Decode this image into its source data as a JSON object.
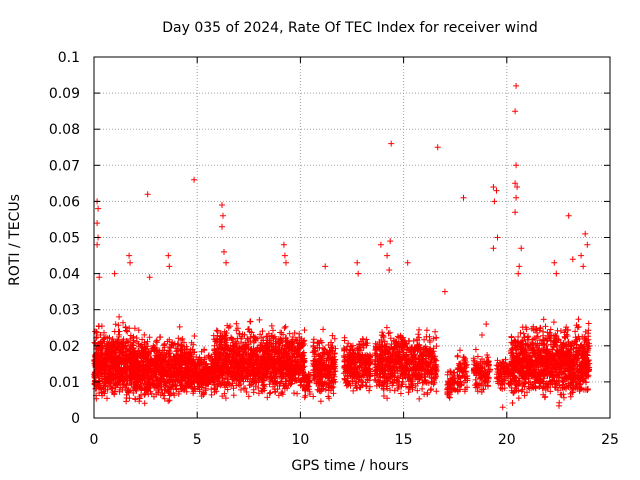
{
  "chart_data": {
    "type": "scatter",
    "title": "Day 035 of 2024, Rate Of TEC Index for receiver wind",
    "xlabel": "GPS time / hours",
    "ylabel": "ROTI / TECUs",
    "xlim": [
      0,
      25
    ],
    "ylim": [
      0,
      0.1
    ],
    "xticks": [
      "0",
      "5",
      "10",
      "15",
      "20",
      "25"
    ],
    "yticks": [
      "0",
      "0.01",
      "0.02",
      "0.03",
      "0.04",
      "0.05",
      "0.06",
      "0.07",
      "0.08",
      "0.09",
      "0.1"
    ],
    "grid": true,
    "marker": "+",
    "series_color": "#ff0000",
    "outliers": [
      {
        "x": 0.15,
        "y": 0.06
      },
      {
        "x": 0.2,
        "y": 0.058
      },
      {
        "x": 0.15,
        "y": 0.054
      },
      {
        "x": 0.2,
        "y": 0.05
      },
      {
        "x": 0.15,
        "y": 0.048
      },
      {
        "x": 0.25,
        "y": 0.039
      },
      {
        "x": 1.0,
        "y": 0.04
      },
      {
        "x": 1.7,
        "y": 0.045
      },
      {
        "x": 1.75,
        "y": 0.043
      },
      {
        "x": 2.6,
        "y": 0.062
      },
      {
        "x": 2.7,
        "y": 0.039
      },
      {
        "x": 3.6,
        "y": 0.045
      },
      {
        "x": 3.65,
        "y": 0.042
      },
      {
        "x": 4.85,
        "y": 0.066
      },
      {
        "x": 6.2,
        "y": 0.059
      },
      {
        "x": 6.25,
        "y": 0.056
      },
      {
        "x": 6.2,
        "y": 0.053
      },
      {
        "x": 6.3,
        "y": 0.046
      },
      {
        "x": 6.4,
        "y": 0.043
      },
      {
        "x": 9.2,
        "y": 0.048
      },
      {
        "x": 9.25,
        "y": 0.045
      },
      {
        "x": 9.3,
        "y": 0.043
      },
      {
        "x": 11.2,
        "y": 0.042
      },
      {
        "x": 12.75,
        "y": 0.043
      },
      {
        "x": 12.8,
        "y": 0.04
      },
      {
        "x": 13.9,
        "y": 0.048
      },
      {
        "x": 14.4,
        "y": 0.076
      },
      {
        "x": 14.35,
        "y": 0.049
      },
      {
        "x": 14.2,
        "y": 0.045
      },
      {
        "x": 14.3,
        "y": 0.041
      },
      {
        "x": 15.2,
        "y": 0.043
      },
      {
        "x": 16.65,
        "y": 0.075
      },
      {
        "x": 17.9,
        "y": 0.061
      },
      {
        "x": 19.35,
        "y": 0.064
      },
      {
        "x": 19.5,
        "y": 0.063
      },
      {
        "x": 19.4,
        "y": 0.06
      },
      {
        "x": 19.55,
        "y": 0.05
      },
      {
        "x": 19.35,
        "y": 0.047
      },
      {
        "x": 20.45,
        "y": 0.092
      },
      {
        "x": 20.4,
        "y": 0.085
      },
      {
        "x": 20.45,
        "y": 0.07
      },
      {
        "x": 20.4,
        "y": 0.065
      },
      {
        "x": 20.5,
        "y": 0.064
      },
      {
        "x": 20.45,
        "y": 0.061
      },
      {
        "x": 20.4,
        "y": 0.057
      },
      {
        "x": 20.7,
        "y": 0.047
      },
      {
        "x": 20.6,
        "y": 0.042
      },
      {
        "x": 20.55,
        "y": 0.04
      },
      {
        "x": 23.0,
        "y": 0.056
      },
      {
        "x": 23.8,
        "y": 0.051
      },
      {
        "x": 23.9,
        "y": 0.048
      },
      {
        "x": 23.6,
        "y": 0.045
      },
      {
        "x": 23.2,
        "y": 0.044
      },
      {
        "x": 23.7,
        "y": 0.042
      },
      {
        "x": 22.3,
        "y": 0.043
      },
      {
        "x": 22.4,
        "y": 0.04
      },
      {
        "x": 19.8,
        "y": 0.003
      },
      {
        "x": 17.0,
        "y": 0.035
      },
      {
        "x": 18.8,
        "y": 0.023
      },
      {
        "x": 19.0,
        "y": 0.026
      }
    ],
    "density_segments": [
      {
        "x0": 0.0,
        "x1": 2.0,
        "yl": 0.002,
        "yh": 0.03,
        "n": 700
      },
      {
        "x0": 2.0,
        "x1": 4.9,
        "yl": 0.002,
        "yh": 0.027,
        "n": 850
      },
      {
        "x0": 4.9,
        "x1": 5.8,
        "yl": 0.004,
        "yh": 0.022,
        "n": 200
      },
      {
        "x0": 5.8,
        "x1": 10.2,
        "yl": 0.003,
        "yh": 0.03,
        "n": 1300
      },
      {
        "x0": 10.2,
        "x1": 10.5,
        "yl": 0.004,
        "yh": 0.015,
        "n": 40
      },
      {
        "x0": 10.6,
        "x1": 11.7,
        "yl": 0.003,
        "yh": 0.027,
        "n": 260
      },
      {
        "x0": 12.1,
        "x1": 13.4,
        "yl": 0.004,
        "yh": 0.027,
        "n": 300
      },
      {
        "x0": 13.6,
        "x1": 14.9,
        "yl": 0.003,
        "yh": 0.03,
        "n": 320
      },
      {
        "x0": 14.9,
        "x1": 16.6,
        "yl": 0.003,
        "yh": 0.029,
        "n": 380
      },
      {
        "x0": 17.1,
        "x1": 17.5,
        "yl": 0.004,
        "yh": 0.015,
        "n": 60
      },
      {
        "x0": 17.6,
        "x1": 18.1,
        "yl": 0.004,
        "yh": 0.022,
        "n": 70
      },
      {
        "x0": 18.4,
        "x1": 19.2,
        "yl": 0.005,
        "yh": 0.021,
        "n": 110
      },
      {
        "x0": 19.5,
        "x1": 20.2,
        "yl": 0.006,
        "yh": 0.02,
        "n": 90
      },
      {
        "x0": 20.2,
        "x1": 24.0,
        "yl": 0.002,
        "yh": 0.031,
        "n": 1100
      }
    ]
  }
}
